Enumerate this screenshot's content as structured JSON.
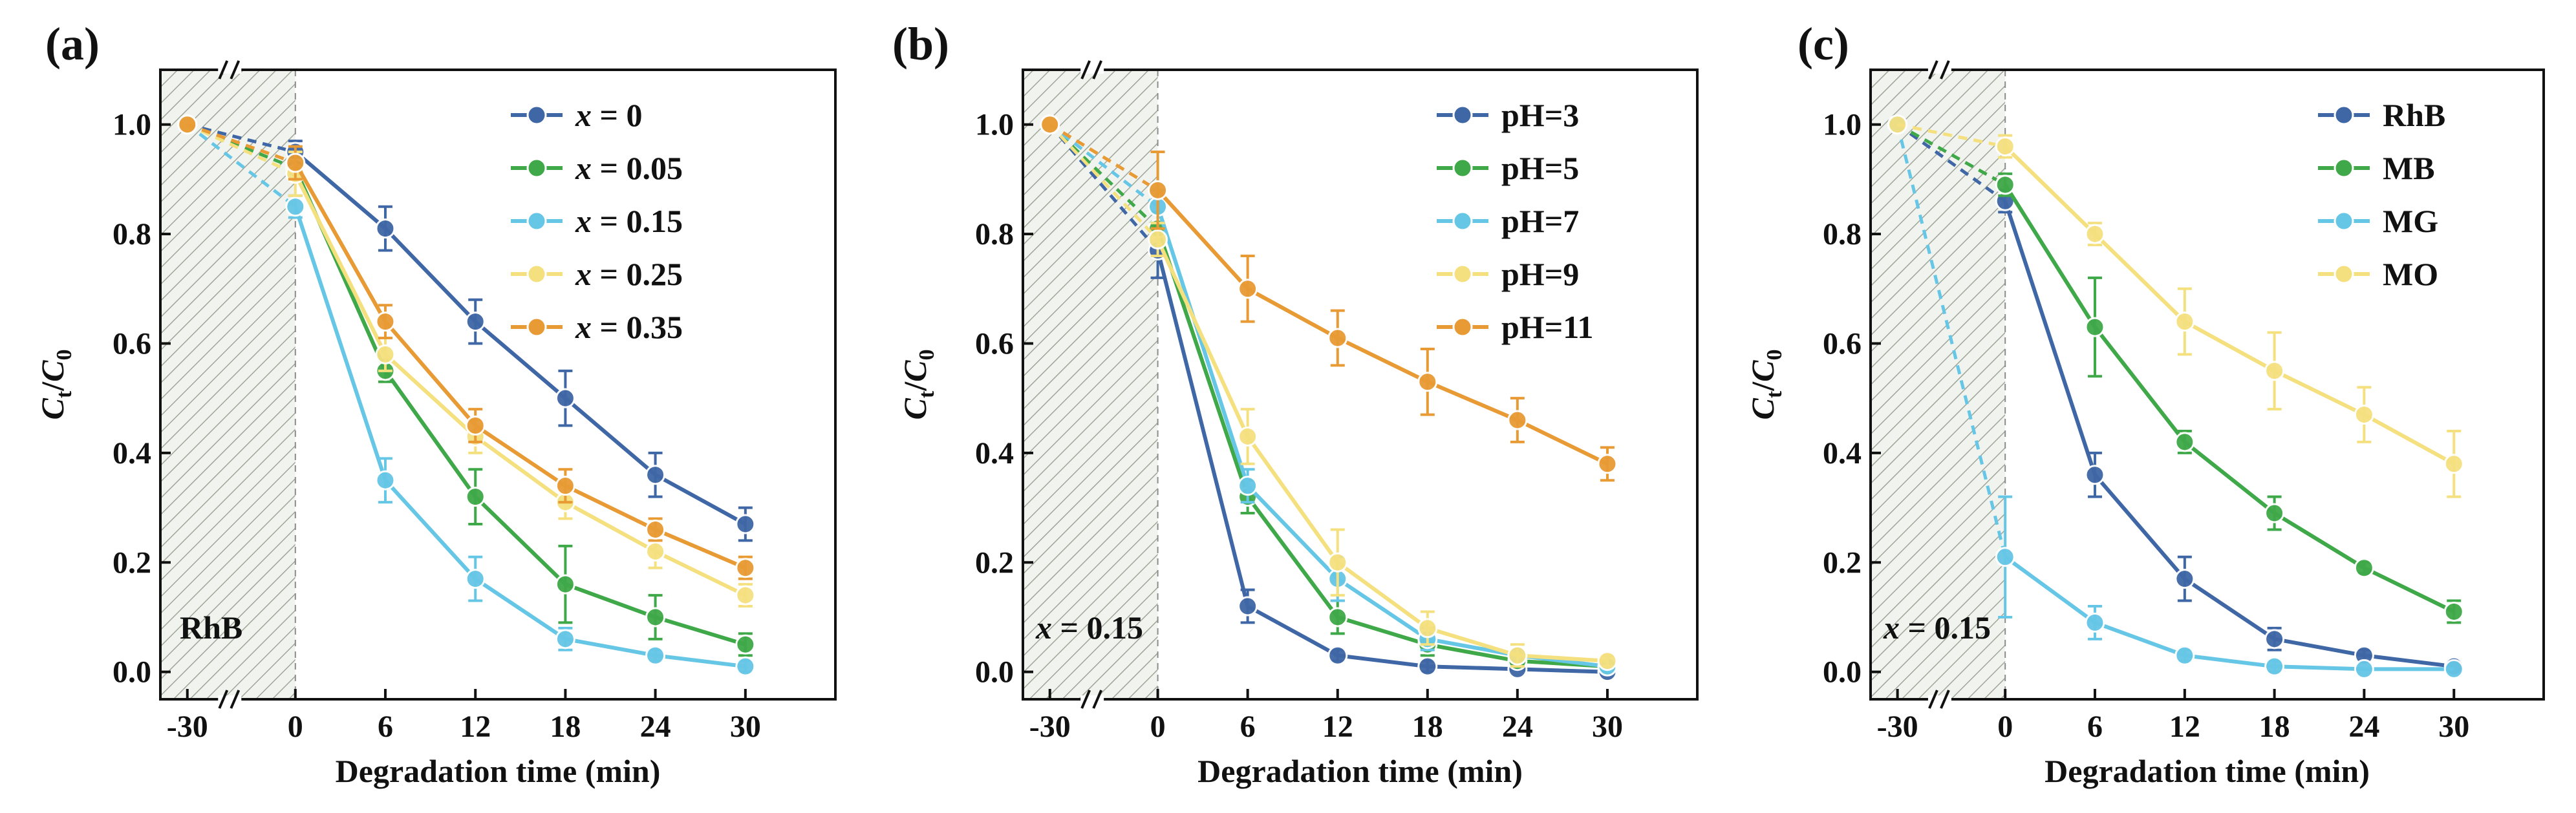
{
  "chart_data": [
    {
      "type": "line",
      "panel_label": "(a)",
      "xlabel": "Degradation time (min)",
      "ylabel": "Ct/C0",
      "ylabel_main": "C",
      "ylabel_sub_t": "t",
      "ylabel_slash": "/",
      "ylabel_sub_0": "0",
      "x": [
        -30,
        0,
        6,
        12,
        18,
        24,
        30
      ],
      "x_tick_labels": [
        "-30",
        "0",
        "6",
        "12",
        "18",
        "24",
        "30"
      ],
      "y_tick_labels": [
        "0.0",
        "0.2",
        "0.4",
        "0.6",
        "0.8",
        "1.0"
      ],
      "ylim": [
        -0.05,
        1.1
      ],
      "dark_region": [
        -30,
        0
      ],
      "annotation": "RhB",
      "legend_position": "top-right",
      "series": [
        {
          "name": "x = 0",
          "label_var": "x",
          "label_rest": " = 0",
          "color": "#3f67a6",
          "values": [
            1.0,
            0.95,
            0.81,
            0.64,
            0.5,
            0.36,
            0.27
          ],
          "errors": [
            0,
            0.02,
            0.04,
            0.04,
            0.05,
            0.04,
            0.03
          ]
        },
        {
          "name": "x = 0.05",
          "label_var": "x",
          "label_rest": " = 0.05",
          "color": "#3fa848",
          "values": [
            1.0,
            0.92,
            0.55,
            0.32,
            0.16,
            0.1,
            0.05
          ],
          "errors": [
            0,
            0.02,
            0.02,
            0.05,
            0.07,
            0.04,
            0.02
          ]
        },
        {
          "name": "x = 0.15",
          "label_var": "x",
          "label_rest": " = 0.15",
          "color": "#66c6e6",
          "values": [
            1.0,
            0.85,
            0.35,
            0.17,
            0.06,
            0.03,
            0.01
          ],
          "errors": [
            0,
            0.02,
            0.04,
            0.04,
            0.02,
            0.01,
            0.01
          ]
        },
        {
          "name": "x = 0.25",
          "label_var": "x",
          "label_rest": " = 0.25",
          "color": "#f5e080",
          "values": [
            1.0,
            0.91,
            0.58,
            0.43,
            0.31,
            0.22,
            0.14
          ],
          "errors": [
            0,
            0.04,
            0.03,
            0.03,
            0.03,
            0.03,
            0.02
          ]
        },
        {
          "name": "x = 0.35",
          "label_var": "x",
          "label_rest": " = 0.35",
          "color": "#e89a34",
          "values": [
            1.0,
            0.93,
            0.64,
            0.45,
            0.34,
            0.26,
            0.19
          ],
          "errors": [
            0,
            0.03,
            0.03,
            0.03,
            0.03,
            0.02,
            0.02
          ]
        }
      ]
    },
    {
      "type": "line",
      "panel_label": "(b)",
      "xlabel": "Degradation time (min)",
      "ylabel": "Ct/C0",
      "ylabel_main": "C",
      "ylabel_sub_t": "t",
      "ylabel_slash": "/",
      "ylabel_sub_0": "0",
      "x": [
        -30,
        0,
        6,
        12,
        18,
        24,
        30
      ],
      "x_tick_labels": [
        "-30",
        "0",
        "6",
        "12",
        "18",
        "24",
        "30"
      ],
      "y_tick_labels": [
        "0.0",
        "0.2",
        "0.4",
        "0.6",
        "0.8",
        "1.0"
      ],
      "ylim": [
        -0.05,
        1.1
      ],
      "dark_region": [
        -30,
        0
      ],
      "annotation": "x = 0.15",
      "annotation_var": "x",
      "annotation_rest": " = 0.15",
      "legend_position": "top-right",
      "series": [
        {
          "name": "pH=3",
          "color": "#3f67a6",
          "values": [
            1.0,
            0.77,
            0.12,
            0.03,
            0.01,
            0.005,
            0.0
          ],
          "errors": [
            0,
            0.05,
            0.03,
            0.01,
            0.01,
            0.005,
            0.005
          ]
        },
        {
          "name": "pH=5",
          "color": "#3fa848",
          "values": [
            1.0,
            0.81,
            0.32,
            0.1,
            0.05,
            0.02,
            0.01
          ],
          "errors": [
            0,
            0.03,
            0.03,
            0.03,
            0.02,
            0.01,
            0.01
          ]
        },
        {
          "name": "pH=7",
          "color": "#66c6e6",
          "values": [
            1.0,
            0.85,
            0.34,
            0.17,
            0.06,
            0.03,
            0.01
          ],
          "errors": [
            0,
            0.03,
            0.03,
            0.04,
            0.02,
            0.01,
            0.01
          ]
        },
        {
          "name": "pH=9",
          "color": "#f5e080",
          "values": [
            1.0,
            0.79,
            0.43,
            0.2,
            0.08,
            0.03,
            0.02
          ],
          "errors": [
            0,
            0.03,
            0.05,
            0.06,
            0.03,
            0.02,
            0.01
          ]
        },
        {
          "name": "pH=11",
          "color": "#e89a34",
          "values": [
            1.0,
            0.88,
            0.7,
            0.61,
            0.53,
            0.46,
            0.38
          ],
          "errors": [
            0,
            0.07,
            0.06,
            0.05,
            0.06,
            0.04,
            0.03
          ]
        }
      ]
    },
    {
      "type": "line",
      "panel_label": "(c)",
      "xlabel": "Degradation time (min)",
      "ylabel": "Ct/C0",
      "ylabel_main": "C",
      "ylabel_sub_t": "t",
      "ylabel_slash": "/",
      "ylabel_sub_0": "0",
      "x": [
        -30,
        0,
        6,
        12,
        18,
        24,
        30
      ],
      "x_tick_labels": [
        "-30",
        "0",
        "6",
        "12",
        "18",
        "24",
        "30"
      ],
      "y_tick_labels": [
        "0.0",
        "0.2",
        "0.4",
        "0.6",
        "0.8",
        "1.0"
      ],
      "ylim": [
        -0.05,
        1.1
      ],
      "dark_region": [
        -30,
        0
      ],
      "annotation": "x = 0.15",
      "annotation_var": "x",
      "annotation_rest": " = 0.15",
      "legend_position": "top-right",
      "series": [
        {
          "name": "RhB",
          "color": "#3f67a6",
          "values": [
            1.0,
            0.86,
            0.36,
            0.17,
            0.06,
            0.03,
            0.01
          ],
          "errors": [
            0,
            0.02,
            0.04,
            0.04,
            0.02,
            0.01,
            0.01
          ]
        },
        {
          "name": "MB",
          "color": "#3fa848",
          "values": [
            1.0,
            0.89,
            0.63,
            0.42,
            0.29,
            0.19,
            0.11
          ],
          "errors": [
            0,
            0.02,
            0.09,
            0.02,
            0.03,
            0.01,
            0.02
          ]
        },
        {
          "name": "MG",
          "color": "#66c6e6",
          "values": [
            1.0,
            0.21,
            0.09,
            0.03,
            0.01,
            0.005,
            0.005
          ],
          "errors": [
            0,
            0.11,
            0.03,
            0.01,
            0.01,
            0.005,
            0.005
          ]
        },
        {
          "name": "MO",
          "color": "#f5e080",
          "values": [
            1.0,
            0.96,
            0.8,
            0.64,
            0.55,
            0.47,
            0.38
          ],
          "errors": [
            0,
            0.02,
            0.02,
            0.06,
            0.07,
            0.05,
            0.06
          ]
        }
      ]
    }
  ]
}
